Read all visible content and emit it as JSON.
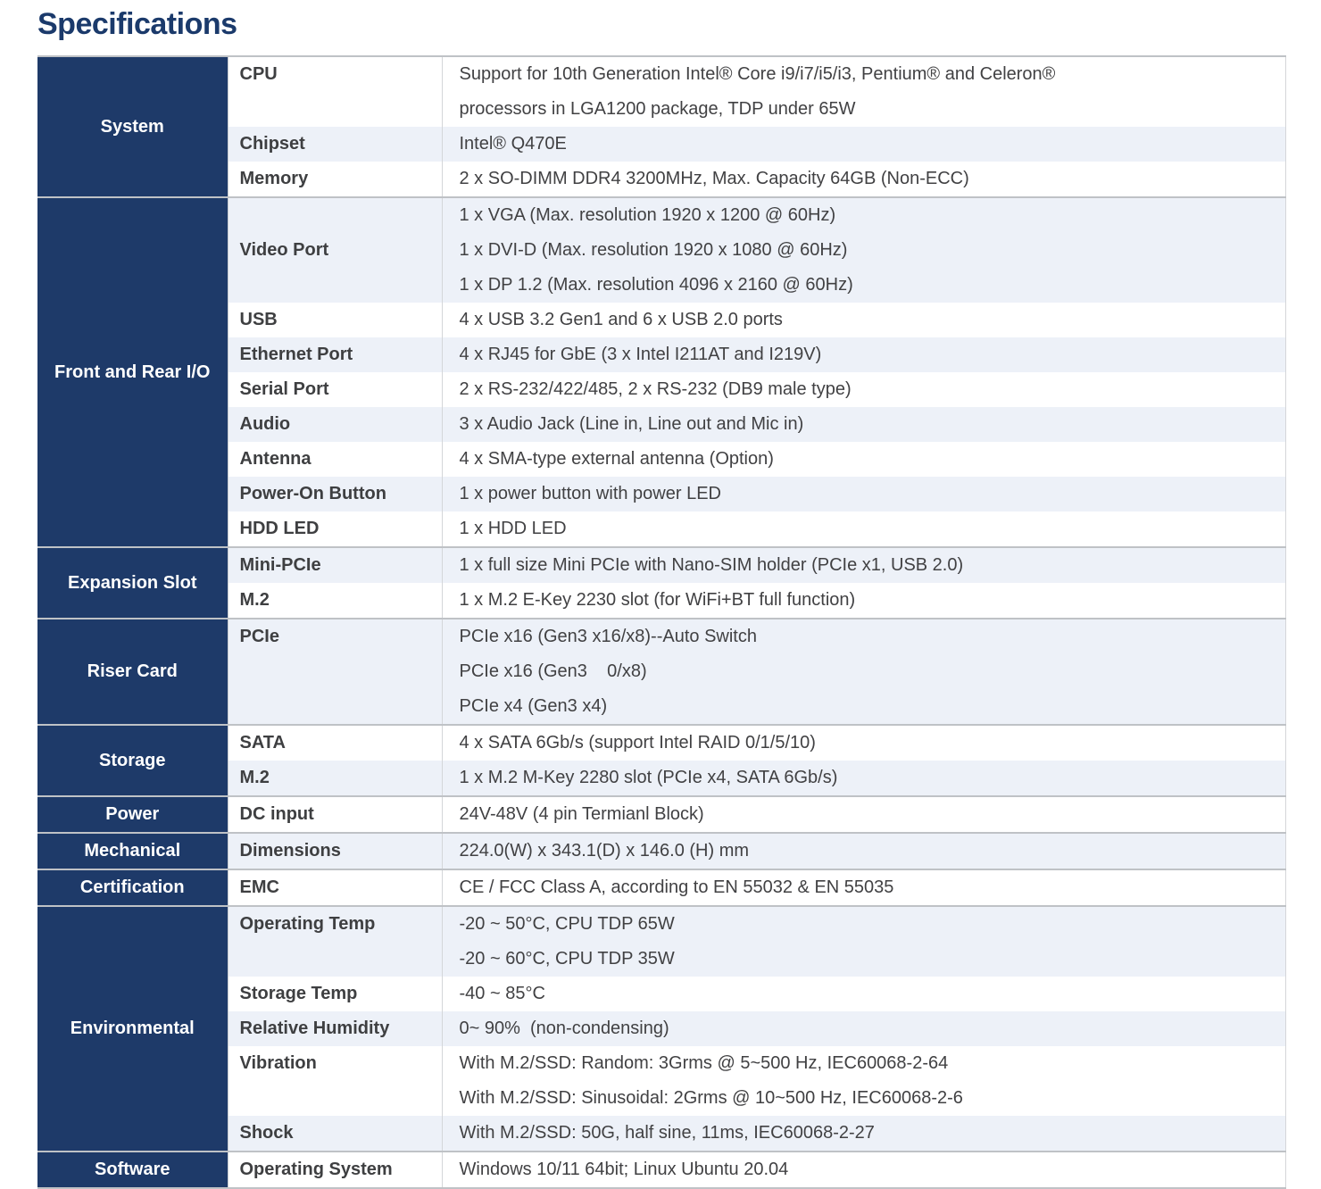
{
  "title": "Specifications",
  "colors": {
    "title_navy": "#1b3a6b",
    "category_bg": "#1e3a69",
    "category_text": "#ffffff",
    "row_alt_bg": "#edf1f8",
    "row_bg": "#ffffff",
    "body_text": "#414143",
    "section_border": "#bfc2c6"
  },
  "table": {
    "sections": [
      {
        "category": "System",
        "rows": [
          {
            "label": "CPU",
            "lines": [
              "Support for 10th Generation Intel® Core i9/i7/i5/i3, Pentium® and Celeron®",
              "processors in LGA1200 package, TDP under 65W"
            ]
          },
          {
            "label": "Chipset",
            "lines": [
              "Intel® Q470E"
            ]
          },
          {
            "label": "Memory",
            "lines": [
              "2 x SO-DIMM DDR4 3200MHz, Max. Capacity 64GB (Non-ECC)"
            ]
          }
        ]
      },
      {
        "category": "Front and Rear I/O",
        "rows": [
          {
            "label": "Video Port",
            "lines": [
              "1 x VGA (Max. resolution 1920 x 1200 @ 60Hz)",
              "1 x DVI-D (Max. resolution 1920 x 1080 @ 60Hz)",
              "1 x DP 1.2 (Max. resolution 4096 x 2160 @ 60Hz)"
            ]
          },
          {
            "label": "USB",
            "lines": [
              "4 x USB 3.2 Gen1 and 6 x USB 2.0 ports"
            ]
          },
          {
            "label": "Ethernet Port",
            "lines": [
              "4 x RJ45 for GbE (3 x Intel I211AT and I219V)"
            ]
          },
          {
            "label": "Serial Port",
            "lines": [
              "2 x RS-232/422/485, 2 x RS-232 (DB9 male type)"
            ]
          },
          {
            "label": "Audio",
            "lines": [
              "3 x Audio Jack (Line in, Line out and Mic in)"
            ]
          },
          {
            "label": "Antenna",
            "lines": [
              "4 x SMA-type external antenna (Option)"
            ]
          },
          {
            "label": "Power-On Button",
            "lines": [
              "1 x power button with power LED"
            ]
          },
          {
            "label": "HDD LED",
            "lines": [
              "1 x HDD LED"
            ]
          }
        ]
      },
      {
        "category": "Expansion Slot",
        "rows": [
          {
            "label": "Mini-PCIe",
            "lines": [
              "1 x full size Mini PCIe with Nano-SIM holder (PCIe x1, USB 2.0)"
            ]
          },
          {
            "label": "M.2",
            "lines": [
              "1 x M.2 E-Key 2230 slot (for WiFi+BT full function)"
            ]
          }
        ]
      },
      {
        "category": "Riser Card",
        "rows": [
          {
            "label": "PCIe",
            "lines": [
              "PCIe x16 (Gen3 x16/x8)--Auto Switch",
              "PCIe x16 (Gen3    0/x8)",
              "PCIe x4 (Gen3 x4)"
            ]
          }
        ]
      },
      {
        "category": "Storage",
        "rows": [
          {
            "label": "SATA",
            "lines": [
              "4 x SATA 6Gb/s (support Intel RAID 0/1/5/10)"
            ]
          },
          {
            "label": "M.2",
            "lines": [
              "1 x M.2 M-Key 2280 slot (PCIe x4, SATA 6Gb/s)"
            ]
          }
        ]
      },
      {
        "category": "Power",
        "rows": [
          {
            "label": "DC input",
            "lines": [
              "24V-48V (4 pin Termianl Block)"
            ]
          }
        ]
      },
      {
        "category": "Mechanical",
        "rows": [
          {
            "label": "Dimensions",
            "lines": [
              "224.0(W) x 343.1(D) x 146.0 (H) mm"
            ]
          }
        ]
      },
      {
        "category": "Certification",
        "rows": [
          {
            "label": "EMC",
            "lines": [
              "CE / FCC Class A, according to EN 55032 & EN 55035"
            ]
          }
        ]
      },
      {
        "category": "Environmental",
        "rows": [
          {
            "label": "Operating Temp",
            "lines": [
              "-20 ~ 50°C, CPU TDP 65W",
              "-20 ~ 60°C, CPU TDP 35W"
            ]
          },
          {
            "label": "Storage Temp",
            "lines": [
              "-40 ~ 85°C"
            ]
          },
          {
            "label": "Relative Humidity",
            "lines": [
              "0~ 90%  (non-condensing)"
            ]
          },
          {
            "label": "Vibration",
            "lines": [
              "With M.2/SSD: Random: 3Grms @ 5~500 Hz, IEC60068-2-64",
              "With M.2/SSD: Sinusoidal: 2Grms @ 10~500 Hz, IEC60068-2-6"
            ]
          },
          {
            "label": "Shock",
            "lines": [
              "With M.2/SSD: 50G, half sine, 11ms, IEC60068-2-27"
            ]
          }
        ]
      },
      {
        "category": "Software",
        "rows": [
          {
            "label": "Operating System",
            "lines": [
              "Windows 10/11 64bit; Linux Ubuntu 20.04"
            ]
          }
        ]
      }
    ]
  }
}
